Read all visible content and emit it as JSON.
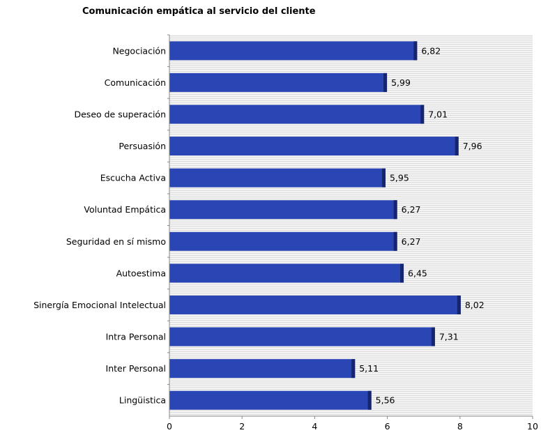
{
  "chart_data": {
    "type": "bar",
    "orientation": "horizontal",
    "title": "Comunicación empática al servicio del cliente",
    "xlabel": "",
    "ylabel": "",
    "xlim": [
      0,
      10
    ],
    "x_ticks": [
      "0",
      "2",
      "4",
      "6",
      "8",
      "10"
    ],
    "categories": [
      "Negociación",
      "Comunicación",
      "Deseo de superación",
      "Persuasión",
      "Escucha Activa",
      "Voluntad Empática",
      "Seguridad en sí mismo",
      "Autoestima",
      "Sinergía Emocional Intelectual",
      "Intra Personal",
      "Inter Personal",
      "Lingüistica"
    ],
    "values": [
      6.82,
      5.99,
      7.01,
      7.96,
      5.95,
      6.27,
      6.27,
      6.45,
      8.02,
      7.31,
      5.11,
      5.56
    ],
    "value_labels": [
      "6,82",
      "5,99",
      "7,01",
      "7,96",
      "5,95",
      "6,27",
      "6,27",
      "6,45",
      "8,02",
      "7,31",
      "5,11",
      "5,56"
    ],
    "grid": true,
    "legend": "none",
    "colors": {
      "bar": "#2a45b4",
      "bar_edge": "#15266e",
      "grid_line": "#dcdcdc",
      "plot_background": "#f4f4f4"
    }
  }
}
